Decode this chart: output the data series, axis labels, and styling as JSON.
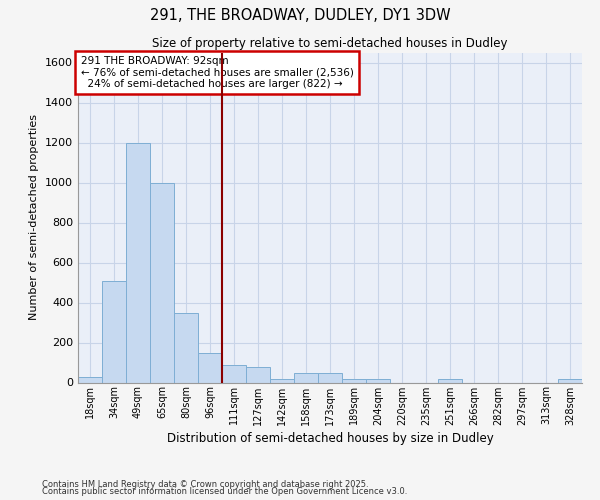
{
  "title": "291, THE BROADWAY, DUDLEY, DY1 3DW",
  "subtitle": "Size of property relative to semi-detached houses in Dudley",
  "xlabel": "Distribution of semi-detached houses by size in Dudley",
  "ylabel": "Number of semi-detached properties",
  "categories": [
    "18sqm",
    "34sqm",
    "49sqm",
    "65sqm",
    "80sqm",
    "96sqm",
    "111sqm",
    "127sqm",
    "142sqm",
    "158sqm",
    "173sqm",
    "189sqm",
    "204sqm",
    "220sqm",
    "235sqm",
    "251sqm",
    "266sqm",
    "282sqm",
    "297sqm",
    "313sqm",
    "328sqm"
  ],
  "bar_heights": [
    30,
    510,
    1200,
    1000,
    350,
    150,
    90,
    80,
    20,
    50,
    50,
    20,
    20,
    0,
    0,
    20,
    0,
    0,
    0,
    0,
    20
  ],
  "bar_color": "#c6d9f0",
  "bar_edge_color": "#7eaed4",
  "grid_color": "#c8d4e8",
  "bg_color": "#eaeff8",
  "vline_value": 5.5,
  "vline_color": "#8b0000",
  "annotation_text": "291 THE BROADWAY: 92sqm\n← 76% of semi-detached houses are smaller (2,536)\n  24% of semi-detached houses are larger (822) →",
  "annotation_box_color": "#ffffff",
  "annotation_box_edge": "#cc0000",
  "ylim": [
    0,
    1650
  ],
  "yticks": [
    0,
    200,
    400,
    600,
    800,
    1000,
    1200,
    1400,
    1600
  ],
  "footnote1": "Contains HM Land Registry data © Crown copyright and database right 2025.",
  "footnote2": "Contains public sector information licensed under the Open Government Licence v3.0."
}
